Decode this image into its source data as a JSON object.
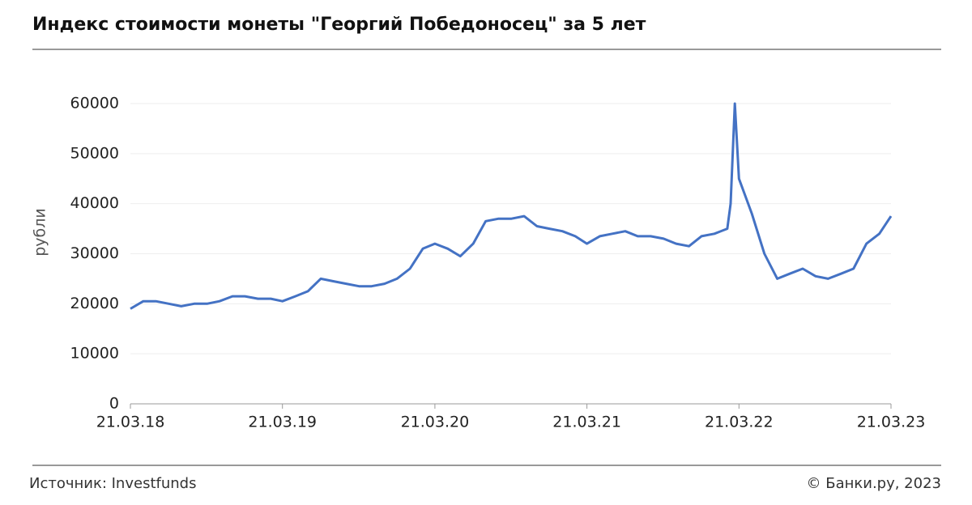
{
  "chart_data": {
    "type": "line",
    "title": "Индекс стоимости монеты \"Георгий Победоносец\" за 5 лет",
    "y_label": "рубли",
    "x": [
      "21.03.18",
      "21.04.18",
      "21.05.18",
      "21.06.18",
      "21.07.18",
      "21.08.18",
      "21.09.18",
      "21.10.18",
      "21.11.18",
      "21.12.18",
      "21.01.19",
      "21.02.19",
      "21.03.19",
      "21.04.19",
      "21.05.19",
      "21.06.19",
      "21.07.19",
      "21.08.19",
      "21.09.19",
      "21.10.19",
      "21.11.19",
      "21.12.19",
      "21.01.20",
      "21.02.20",
      "21.03.20",
      "21.04.20",
      "21.05.20",
      "21.06.20",
      "21.07.20",
      "21.08.20",
      "21.09.20",
      "21.10.20",
      "21.11.20",
      "21.12.20",
      "21.01.21",
      "21.02.21",
      "21.03.21",
      "21.04.21",
      "21.05.21",
      "21.06.21",
      "21.07.21",
      "21.08.21",
      "21.09.21",
      "21.10.21",
      "21.11.21",
      "21.12.21",
      "21.01.22",
      "21.02.22",
      "01.03.22",
      "11.03.22",
      "21.03.22",
      "21.04.22",
      "21.05.22",
      "21.06.22",
      "21.07.22",
      "21.08.22",
      "21.09.22",
      "21.10.22",
      "21.11.22",
      "21.12.22",
      "21.01.23",
      "21.02.23",
      "21.03.23"
    ],
    "series": [
      {
        "name": "Индекс",
        "color": "#4472c4",
        "values": [
          19000,
          20500,
          20500,
          20000,
          19500,
          20000,
          20000,
          20500,
          21500,
          21500,
          21000,
          21000,
          20500,
          21500,
          22500,
          25000,
          24500,
          24000,
          23500,
          23500,
          24000,
          25000,
          27000,
          31000,
          32000,
          31000,
          29500,
          32000,
          36500,
          37000,
          37000,
          37500,
          35500,
          35000,
          34500,
          33500,
          32000,
          33500,
          34000,
          34500,
          33500,
          33500,
          33000,
          32000,
          31500,
          33500,
          34000,
          35000,
          40000,
          60000,
          45000,
          38000,
          30000,
          25000,
          26000,
          27000,
          25500,
          25000,
          26000,
          27000,
          32000,
          34000,
          37500
        ]
      }
    ],
    "xlim": [
      "21.03.18",
      "21.03.23"
    ],
    "xticks": [
      "21.03.18",
      "21.03.19",
      "21.03.20",
      "21.03.21",
      "21.03.22",
      "21.03.23"
    ],
    "ylim": [
      0,
      60000
    ],
    "yticks": [
      0,
      10000,
      20000,
      30000,
      40000,
      50000,
      60000
    ],
    "grid": true
  },
  "footer": {
    "source": "Источник: Investfunds",
    "copyright": "© Банки.ру, 2023"
  }
}
